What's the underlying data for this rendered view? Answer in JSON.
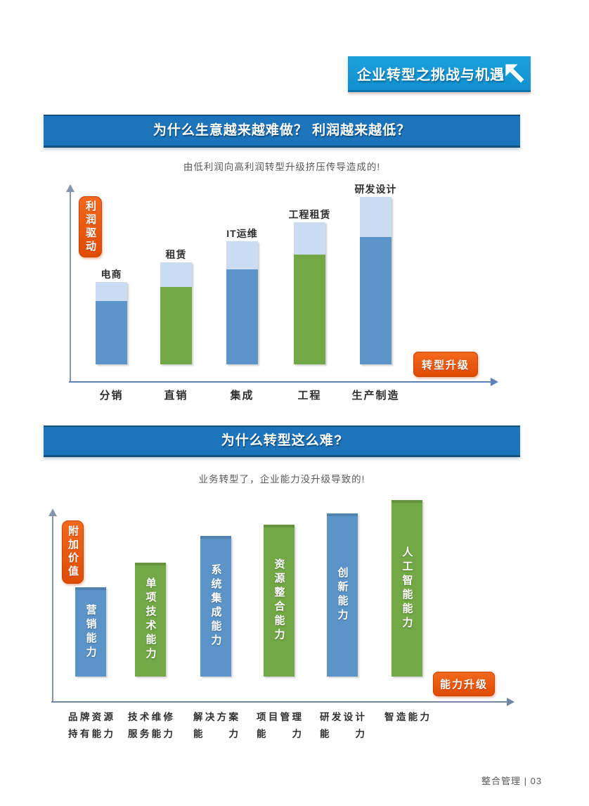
{
  "banner": {
    "title": "企业转型之挑战与机遇",
    "icon": "arrow-up-left-icon"
  },
  "section1": {
    "header": "为什么生意越来越难做？ 利润越来越低？",
    "subtitle": "由低利润向高利润转型升级挤压传导造成的!"
  },
  "section2": {
    "header": "为什么转型这么难?",
    "subtitle": "业务转型了，企业能力没升级导致的!"
  },
  "footer": {
    "text": "整合管理 | 03"
  },
  "colors": {
    "banner_blue": "#1697D6",
    "header_blue": "#1C74BA",
    "accent_orange": "#E9530E",
    "bar_blue": "#5B94C8",
    "bar_green": "#72A845",
    "bar_cap_light_blue": "#C9DCF1"
  },
  "chart_data": [
    {
      "type": "bar",
      "title": "为什么生意越来越难做？ 利润越来越低？",
      "subtitle": "由低利润向高利润转型升级挤压传导造成的!",
      "ylabel": "利润驱动",
      "axis_annotation": "转型升级",
      "categories": [
        "分销",
        "直销",
        "集成",
        "工程",
        "生产制造"
      ],
      "value_scale": "relative percent of plot height (no numeric axis shown)",
      "legend": "off",
      "grid": "off",
      "bars": [
        {
          "category": "分销",
          "top_label": "电商",
          "color": "blue",
          "height_pct": 43,
          "cap_pct": 23
        },
        {
          "category": "直销",
          "top_label": "租赁",
          "color": "green",
          "height_pct": 53,
          "cap_pct": 24
        },
        {
          "category": "集成",
          "top_label": "IT运维",
          "color": "blue",
          "height_pct": 64,
          "cap_pct": 23
        },
        {
          "category": "工程",
          "top_label": "工程租赁",
          "color": "green",
          "height_pct": 74,
          "cap_pct": 23
        },
        {
          "category": "生产制造",
          "top_label": "研发设计",
          "color": "blue",
          "height_pct": 87,
          "cap_pct": 24
        }
      ]
    },
    {
      "type": "bar",
      "title": "为什么转型这么难?",
      "subtitle": "业务转型了，企业能力没升级导致的!",
      "ylabel": "附加价值",
      "axis_annotation": "能力升级",
      "value_scale": "relative percent of plot height (no numeric axis shown)",
      "legend": "off",
      "grid": "off",
      "bars": [
        {
          "category_lines": [
            "品牌资源",
            "持有能力"
          ],
          "bar_label": "营销能力",
          "color": "blue",
          "height_pct": 47
        },
        {
          "category_lines": [
            "技术维修",
            "服务能力"
          ],
          "bar_label": "单项技术能力",
          "color": "green",
          "height_pct": 60
        },
        {
          "category_lines": [
            "解决方案",
            "能　力"
          ],
          "bar_label": "系统集成能力",
          "color": "blue",
          "height_pct": 74
        },
        {
          "category_lines": [
            "项目管理",
            "能　力"
          ],
          "bar_label": "资源整合能力",
          "color": "green",
          "height_pct": 80
        },
        {
          "category_lines": [
            "研发设计",
            "能　力"
          ],
          "bar_label": "创新能力",
          "color": "blue",
          "height_pct": 86
        },
        {
          "category_lines": [
            "智造能力"
          ],
          "bar_label": "人工智能能力",
          "color": "green",
          "height_pct": 93
        }
      ]
    }
  ]
}
